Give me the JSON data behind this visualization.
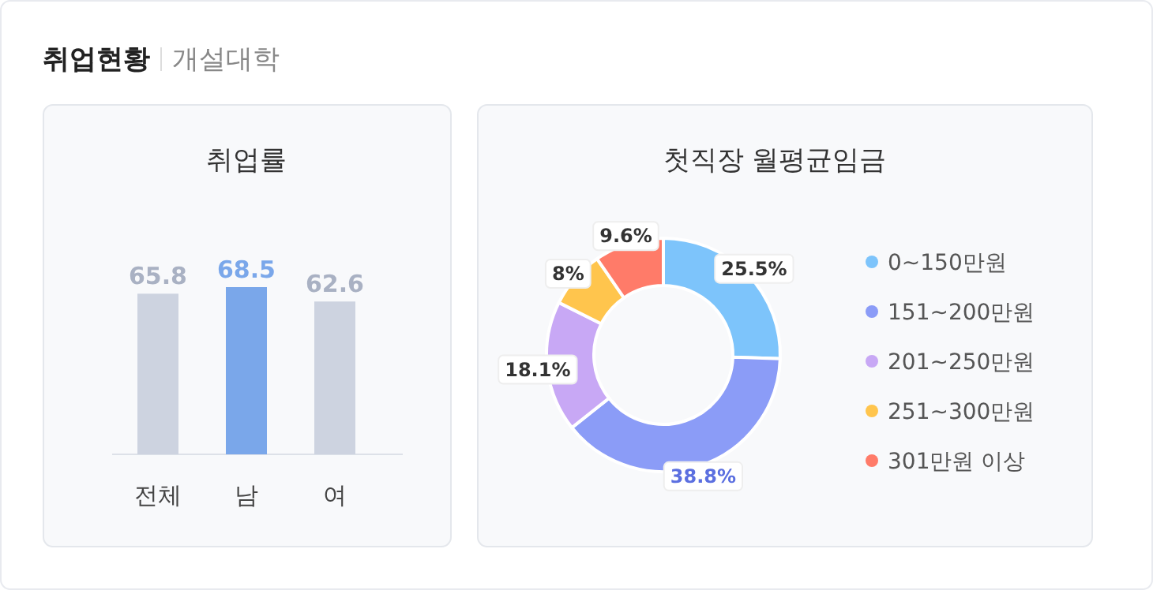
{
  "chart_data": [
    {
      "type": "other",
      "annotations": [
        "취업현황",
        "개설대학"
      ]
    },
    {
      "type": "bar",
      "title": "취업률",
      "categories": [
        "전체",
        "남",
        "여"
      ],
      "values": [
        65.8,
        68.5,
        62.6
      ],
      "colors": [
        "#cdd3e0",
        "#7aa7ea",
        "#cdd3e0"
      ],
      "data_labels": true
    },
    {
      "type": "donut",
      "title": "첫직장 월평균임금",
      "categories": [
        "0~150만원",
        "151~200만원",
        "201~250만원",
        "251~300만원",
        "301만원 이상"
      ],
      "values": [
        25.5,
        38.8,
        18.1,
        8,
        9.6
      ],
      "colors": [
        "#7dc4fb",
        "#8b9cf7",
        "#c8a8f5",
        "#ffc54d",
        "#ff7b69"
      ],
      "value_labels": [
        "25.5%",
        "38.8%",
        "18.1%",
        "8%",
        "9.6%"
      ],
      "legend": "right"
    }
  ]
}
